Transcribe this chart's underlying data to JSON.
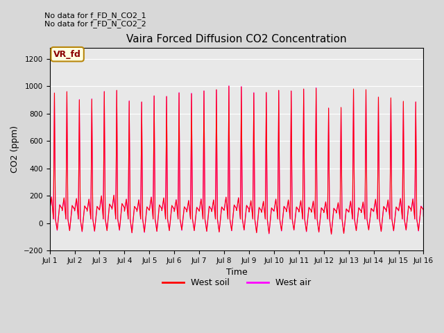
{
  "title": "Vaira Forced Diffusion CO2 Concentration",
  "xlabel": "Time",
  "ylabel": "CO2 (ppm)",
  "ylim": [
    -200,
    1280
  ],
  "yticks": [
    -200,
    0,
    200,
    400,
    600,
    800,
    1000,
    1200
  ],
  "xtick_labels": [
    "Jul 1",
    "Jul 2",
    "Jul 3",
    "Jul 4",
    "Jul 5",
    "Jul 6",
    "Jul 7",
    "Jul 8",
    "Jul 9",
    "Jul 10",
    "Jul 11",
    "Jul 12",
    "Jul 13",
    "Jul 14",
    "Jul 15",
    "Jul 16"
  ],
  "no_data_text1": "No data for f_FD_N_CO2_1",
  "no_data_text2": "No data for f_FD_N_CO2_2",
  "vr_fd_label": "VR_fd",
  "west_soil_color": "#ff0000",
  "west_air_color": "#ff00ff",
  "fig_bg_color": "#d8d8d8",
  "plot_bg_color": "#e8e8e8",
  "n_days": 15,
  "legend_soil": "West soil",
  "legend_air": "West air",
  "peak_heights": [
    950,
    960,
    900,
    905,
    960,
    970,
    890,
    885,
    930,
    925,
    950,
    945,
    965,
    975,
    1000,
    995,
    950,
    955,
    970,
    965,
    980,
    985,
    840,
    845,
    980,
    975,
    920,
    915,
    890,
    885
  ],
  "trough_depths": [
    -50,
    -55,
    -60,
    -58,
    -55,
    -50,
    -70,
    -65,
    -60,
    -55,
    -50,
    -55,
    -60,
    -65,
    -55,
    -50,
    -70,
    -75,
    -55,
    -50,
    -60,
    -65,
    -80,
    -75,
    -55,
    -50,
    -60,
    -55,
    -50,
    -55
  ],
  "mid_peaks": [
    190,
    185,
    180,
    175,
    200,
    205,
    175,
    170,
    190,
    185,
    170,
    165,
    175,
    170,
    190,
    185,
    165,
    160,
    175,
    170,
    165,
    160,
    155,
    150,
    160,
    155,
    175,
    170,
    180,
    175
  ]
}
